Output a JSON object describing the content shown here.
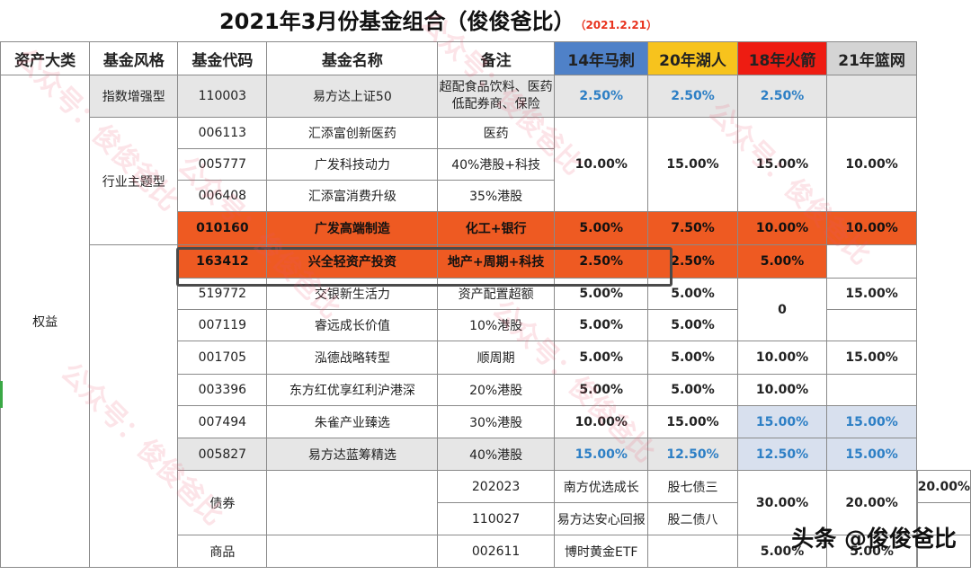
{
  "title": "2021年3月份基金组合（俊俊爸比）",
  "date": "（2021.2.21）",
  "headers": [
    "资产大类",
    "基金风格",
    "基金代码",
    "基金名称",
    "备注",
    "14年马刺",
    "20年湖人",
    "18年火箭",
    "21年篮网"
  ],
  "categories": {
    "equity": "权益",
    "bond": "债券",
    "commodity": "商品"
  },
  "styles": {
    "index": "指数增强型",
    "theme": "行业主题型"
  },
  "rows": [
    {
      "code": "110003",
      "name": "易方达上证50",
      "note": "超配食品饮料、医药低配券商、保险",
      "w14": "2.50%",
      "w20": "2.50%",
      "w18": "2.50%",
      "w21": ""
    },
    {
      "code": "006113",
      "name": "汇添富创新医药",
      "note": "医药"
    },
    {
      "code": "005777",
      "name": "广发科技动力",
      "note": "40%港股+科技"
    },
    {
      "code": "006408",
      "name": "汇添富消费升级",
      "note": "35%港股"
    },
    {
      "code": "010160",
      "name": "广发高端制造",
      "note": "化工+银行",
      "w14": "5.00%",
      "w20": "7.50%",
      "w18": "10.00%",
      "w21": "10.00%"
    },
    {
      "code": "163412",
      "name": "兴全轻资产投资",
      "note": "地产+周期+科技",
      "w14": "2.50%",
      "w20": "2.50%",
      "w18": "5.00%",
      "w21": ""
    },
    {
      "code": "519772",
      "name": "交银新生活力",
      "note": "资产配置超额",
      "w14": "5.00%",
      "w20": "5.00%",
      "w21": "15.00%"
    },
    {
      "code": "007119",
      "name": "睿远成长价值",
      "note": "10%港股",
      "w14": "5.00%",
      "w20": "5.00%"
    },
    {
      "code": "001705",
      "name": "泓德战略转型",
      "note": "顺周期",
      "w14": "5.00%",
      "w20": "5.00%",
      "w18": "10.00%",
      "w21": "15.00%"
    },
    {
      "code": "003396",
      "name": "东方红优享红利沪港深",
      "note": "20%港股",
      "w14": "5.00%",
      "w20": "5.00%",
      "w18": "10.00%"
    },
    {
      "code": "007494",
      "name": "朱雀产业臻选",
      "note": "30%港股",
      "w14": "10.00%",
      "w20": "15.00%",
      "w18": "15.00%",
      "w21": "15.00%"
    },
    {
      "code": "005827",
      "name": "易方达蓝筹精选",
      "note": "40%港股",
      "w14": "15.00%",
      "w20": "12.50%",
      "w18": "12.50%",
      "w21": "15.00%"
    },
    {
      "code": "202023",
      "name": "南方优选成长",
      "note": "股七债三",
      "w21": "20.00%"
    },
    {
      "code": "110027",
      "name": "易方达安心回报",
      "note": "股二债八"
    },
    {
      "code": "002611",
      "name": "博时黄金ETF",
      "note": "",
      "w14": "5.00%",
      "w20": "5.00%"
    }
  ],
  "merged": {
    "theme_w14": "10.00%",
    "theme_w20": "15.00%",
    "theme_w18": "15.00%",
    "theme_w21": "10.00%",
    "r1819_w18": "0",
    "bond_w14": "30.00%",
    "bond_w20": "20.00%"
  },
  "watermark": "公众号：俊俊爸比",
  "brand": "头条 @俊俊爸比",
  "colors": {
    "orange": "#ee5a22",
    "mls": "#4f81c8",
    "lal": "#f7c31d",
    "tor": "#ee1c12",
    "bkn": "#d4d4d4",
    "blue_text": "#2d7fc5"
  }
}
